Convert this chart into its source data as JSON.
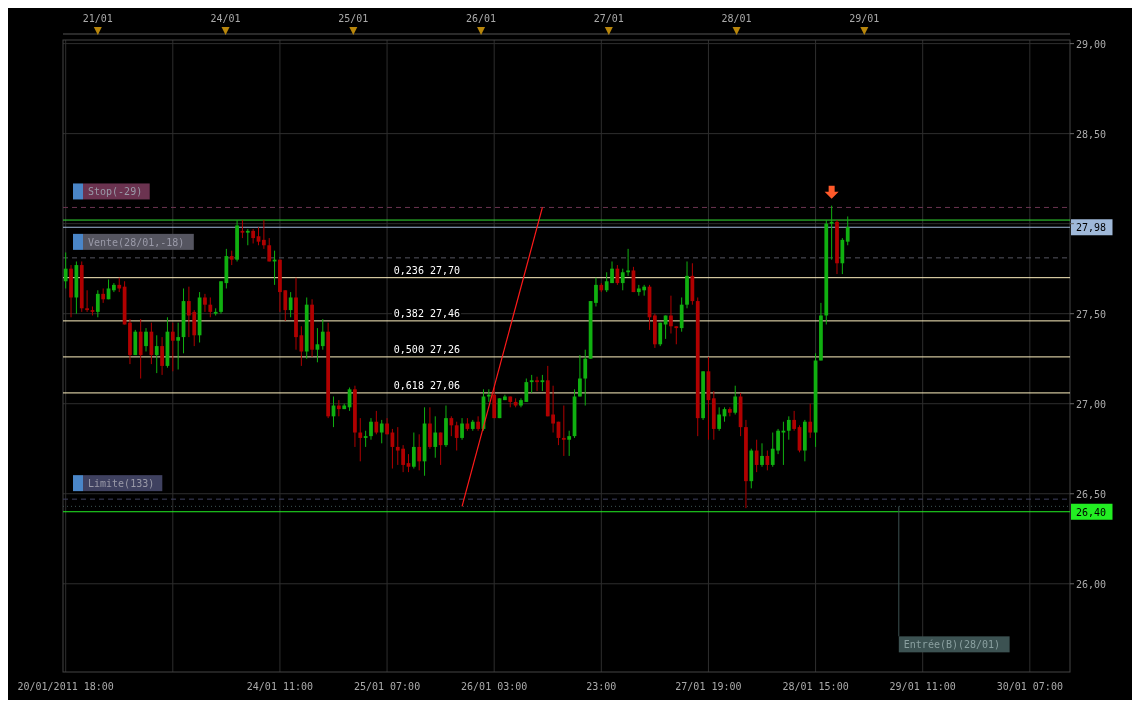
{
  "chart_data": {
    "type": "candlestick",
    "categories": [
      "20/01/2011 18:00",
      null,
      null,
      null,
      null,
      null,
      null,
      null,
      null,
      null,
      null,
      null,
      null,
      null,
      null,
      null,
      null,
      null,
      null,
      null,
      null,
      null,
      null,
      null,
      null,
      null,
      null,
      null,
      null,
      null,
      null,
      null,
      null,
      null,
      null,
      null,
      null,
      null,
      null,
      null,
      "24/01 11:00",
      null,
      null,
      null,
      null,
      null,
      null,
      null,
      null,
      null,
      null,
      null,
      null,
      null,
      null,
      null,
      null,
      null,
      null,
      null,
      "25/01 07:00",
      null,
      null,
      null,
      null,
      null,
      null,
      null,
      null,
      null,
      null,
      null,
      null,
      null,
      null,
      null,
      null,
      null,
      null,
      null,
      "26/01 03:00",
      null,
      null,
      null,
      null,
      null,
      null,
      null,
      null,
      null,
      null,
      null,
      null,
      null,
      null,
      null,
      null,
      null,
      null,
      null,
      "23:00",
      null,
      null,
      null,
      null,
      null,
      null,
      null,
      null,
      null,
      null,
      null,
      null,
      null,
      null,
      null,
      null,
      null,
      null,
      null,
      "27/01 19:00",
      null,
      null,
      null,
      null,
      null,
      null,
      null,
      null,
      null,
      null,
      null,
      null,
      null,
      null,
      null,
      null,
      null,
      null,
      null,
      "28/01 15:00",
      null,
      null,
      null,
      null,
      null,
      null,
      null,
      null,
      null,
      null,
      null,
      null,
      null,
      null,
      null,
      null,
      null,
      null,
      null,
      "29/01 11:00",
      null,
      null,
      null,
      null,
      null,
      null,
      null,
      null,
      null,
      null,
      null,
      null,
      null,
      null,
      null,
      null,
      null,
      null,
      null,
      "30/01 07:00",
      null,
      null,
      null,
      null,
      null,
      null,
      null
    ],
    "ohlc": [
      [
        27.68,
        27.84,
        27.64,
        27.75
      ],
      [
        27.75,
        27.77,
        27.48,
        27.59
      ],
      [
        27.59,
        27.79,
        27.5,
        27.77
      ],
      [
        27.77,
        27.79,
        27.51,
        27.53
      ],
      [
        27.53,
        27.63,
        27.51,
        27.52
      ],
      [
        27.52,
        27.54,
        27.49,
        27.51
      ],
      [
        27.51,
        27.63,
        27.48,
        27.61
      ],
      [
        27.61,
        27.64,
        27.56,
        27.58
      ],
      [
        27.58,
        27.69,
        27.58,
        27.64
      ],
      [
        27.63,
        27.67,
        27.62,
        27.66
      ],
      [
        27.66,
        27.7,
        27.62,
        27.64
      ],
      [
        27.65,
        27.68,
        27.44,
        27.44
      ],
      [
        27.45,
        27.47,
        27.22,
        27.27
      ],
      [
        27.27,
        27.41,
        27.27,
        27.4
      ],
      [
        27.4,
        27.47,
        27.14,
        27.27
      ],
      [
        27.32,
        27.42,
        27.29,
        27.4
      ],
      [
        27.4,
        27.45,
        27.22,
        27.27
      ],
      [
        27.27,
        27.38,
        27.17,
        27.32
      ],
      [
        27.32,
        27.37,
        27.16,
        27.21
      ],
      [
        27.21,
        27.48,
        27.2,
        27.4
      ],
      [
        27.4,
        27.45,
        27.18,
        27.35
      ],
      [
        27.35,
        27.45,
        27.19,
        27.37
      ],
      [
        27.37,
        27.64,
        27.28,
        27.57
      ],
      [
        27.57,
        27.65,
        27.37,
        27.49
      ],
      [
        27.51,
        27.52,
        27.32,
        27.38
      ],
      [
        27.38,
        27.62,
        27.34,
        27.59
      ],
      [
        27.59,
        27.61,
        27.51,
        27.55
      ],
      [
        27.55,
        27.59,
        27.48,
        27.51
      ],
      [
        27.5,
        27.53,
        27.49,
        27.51
      ],
      [
        27.51,
        27.68,
        27.5,
        27.68
      ],
      [
        27.67,
        27.86,
        27.64,
        27.82
      ],
      [
        27.82,
        27.85,
        27.77,
        27.8
      ],
      [
        27.8,
        28.02,
        27.79,
        27.99
      ],
      [
        27.96,
        28.02,
        27.92,
        27.95
      ],
      [
        27.95,
        27.97,
        27.88,
        27.96
      ],
      [
        27.96,
        27.97,
        27.89,
        27.92
      ],
      [
        27.93,
        27.98,
        27.88,
        27.9
      ],
      [
        27.91,
        28.02,
        27.86,
        27.88
      ],
      [
        27.88,
        27.92,
        27.79,
        27.79
      ],
      [
        27.79,
        27.85,
        27.66,
        27.8
      ],
      [
        27.8,
        27.8,
        27.51,
        27.62
      ],
      [
        27.63,
        27.63,
        27.46,
        27.52
      ],
      [
        27.52,
        27.62,
        27.48,
        27.59
      ],
      [
        27.59,
        27.7,
        27.3,
        27.37
      ],
      [
        27.38,
        27.43,
        27.21,
        27.29
      ],
      [
        27.29,
        27.59,
        27.25,
        27.55
      ],
      [
        27.55,
        27.58,
        27.26,
        27.3
      ],
      [
        27.3,
        27.42,
        27.23,
        27.33
      ],
      [
        27.32,
        27.47,
        27.3,
        27.4
      ],
      [
        27.4,
        27.45,
        26.92,
        26.93
      ],
      [
        26.93,
        27.04,
        26.87,
        26.99
      ],
      [
        26.99,
        27.02,
        26.93,
        26.97
      ],
      [
        26.97,
        27.0,
        26.97,
        26.99
      ],
      [
        26.98,
        27.09,
        26.96,
        27.08
      ],
      [
        27.08,
        27.1,
        26.76,
        26.84
      ],
      [
        26.84,
        26.92,
        26.68,
        26.81
      ],
      [
        26.81,
        26.85,
        26.76,
        26.82
      ],
      [
        26.82,
        26.92,
        26.8,
        26.9
      ],
      [
        26.9,
        26.96,
        26.83,
        26.84
      ],
      [
        26.84,
        26.91,
        26.78,
        26.89
      ],
      [
        26.89,
        26.92,
        26.83,
        26.83
      ],
      [
        26.84,
        26.86,
        26.64,
        26.76
      ],
      [
        26.76,
        26.87,
        26.66,
        26.74
      ],
      [
        26.75,
        26.77,
        26.62,
        26.66
      ],
      [
        26.67,
        26.72,
        26.62,
        26.65
      ],
      [
        26.65,
        26.84,
        26.64,
        26.76
      ],
      [
        26.76,
        26.83,
        26.63,
        26.68
      ],
      [
        26.68,
        26.98,
        26.6,
        26.89
      ],
      [
        26.89,
        26.98,
        26.75,
        26.76
      ],
      [
        26.76,
        26.93,
        26.7,
        26.84
      ],
      [
        26.84,
        26.84,
        26.66,
        26.77
      ],
      [
        26.77,
        26.99,
        26.76,
        26.92
      ],
      [
        26.92,
        26.93,
        26.82,
        26.88
      ],
      [
        26.88,
        26.9,
        26.74,
        26.81
      ],
      [
        26.81,
        26.92,
        26.8,
        26.89
      ],
      [
        26.89,
        26.92,
        26.85,
        26.86
      ],
      [
        26.86,
        26.91,
        26.85,
        26.9
      ],
      [
        26.9,
        26.93,
        26.85,
        26.86
      ],
      [
        26.86,
        27.08,
        26.85,
        27.04
      ],
      [
        27.04,
        27.08,
        27.01,
        27.05
      ],
      [
        27.05,
        27.09,
        26.92,
        26.92
      ],
      [
        26.92,
        27.03,
        26.92,
        27.03
      ],
      [
        27.02,
        27.05,
        27.02,
        27.04
      ],
      [
        27.04,
        27.04,
        26.98,
        27.01
      ],
      [
        27.01,
        27.03,
        26.98,
        26.99
      ],
      [
        26.99,
        27.03,
        26.98,
        27.02
      ],
      [
        27.01,
        27.14,
        27.01,
        27.12
      ],
      [
        27.12,
        27.16,
        27.06,
        27.13
      ],
      [
        27.13,
        27.15,
        27.07,
        27.12
      ],
      [
        27.12,
        27.16,
        27.07,
        27.13
      ],
      [
        27.13,
        27.21,
        26.93,
        26.93
      ],
      [
        26.94,
        27.1,
        26.84,
        26.89
      ],
      [
        26.9,
        26.9,
        26.77,
        26.81
      ],
      [
        26.81,
        26.99,
        26.71,
        26.8
      ],
      [
        26.8,
        26.85,
        26.71,
        26.82
      ],
      [
        26.82,
        27.08,
        26.81,
        27.04
      ],
      [
        27.04,
        27.27,
        27.04,
        27.14
      ],
      [
        27.14,
        27.3,
        26.99,
        27.25
      ],
      [
        27.25,
        27.57,
        27.25,
        27.57
      ],
      [
        27.56,
        27.7,
        27.54,
        27.66
      ],
      [
        27.66,
        27.67,
        27.62,
        27.63
      ],
      [
        27.63,
        27.73,
        27.62,
        27.68
      ],
      [
        27.67,
        27.79,
        27.67,
        27.75
      ],
      [
        27.75,
        27.77,
        27.66,
        27.67
      ],
      [
        27.67,
        27.75,
        27.63,
        27.73
      ],
      [
        27.73,
        27.86,
        27.71,
        27.74
      ],
      [
        27.74,
        27.76,
        27.62,
        27.62
      ],
      [
        27.62,
        27.66,
        27.6,
        27.64
      ],
      [
        27.63,
        27.66,
        27.6,
        27.65
      ],
      [
        27.65,
        27.66,
        27.41,
        27.48
      ],
      [
        27.49,
        27.5,
        27.31,
        27.33
      ],
      [
        27.33,
        27.45,
        27.32,
        27.45
      ],
      [
        27.44,
        27.49,
        27.36,
        27.49
      ],
      [
        27.49,
        27.6,
        27.39,
        27.43
      ],
      [
        27.43,
        27.43,
        27.33,
        27.42
      ],
      [
        27.42,
        27.59,
        27.4,
        27.55
      ],
      [
        27.55,
        27.79,
        27.53,
        27.71
      ],
      [
        27.71,
        27.78,
        27.55,
        27.57
      ],
      [
        27.57,
        27.59,
        26.82,
        26.92
      ],
      [
        26.92,
        27.18,
        26.91,
        27.18
      ],
      [
        27.18,
        27.26,
        26.8,
        27.02
      ],
      [
        27.03,
        27.07,
        26.8,
        26.86
      ],
      [
        26.86,
        26.98,
        26.85,
        26.94
      ],
      [
        26.93,
        26.98,
        26.9,
        26.97
      ],
      [
        26.97,
        26.98,
        26.93,
        26.95
      ],
      [
        26.95,
        27.1,
        26.94,
        27.04
      ],
      [
        27.04,
        27.06,
        26.82,
        26.87
      ],
      [
        26.87,
        26.91,
        26.42,
        26.57
      ],
      [
        26.57,
        26.75,
        26.53,
        26.74
      ],
      [
        26.74,
        26.8,
        26.62,
        26.66
      ],
      [
        26.66,
        26.78,
        26.65,
        26.71
      ],
      [
        26.71,
        26.74,
        26.63,
        26.66
      ],
      [
        26.66,
        26.84,
        26.65,
        26.75
      ],
      [
        26.74,
        26.86,
        26.72,
        26.85
      ],
      [
        26.84,
        26.9,
        26.66,
        26.85
      ],
      [
        26.85,
        26.93,
        26.8,
        26.91
      ],
      [
        26.91,
        26.96,
        26.85,
        26.86
      ],
      [
        26.87,
        26.88,
        26.73,
        26.74
      ],
      [
        26.74,
        26.91,
        26.68,
        26.9
      ],
      [
        26.9,
        27.0,
        26.81,
        26.84
      ],
      [
        26.84,
        27.28,
        26.76,
        27.24
      ],
      [
        27.24,
        27.56,
        27.24,
        27.49
      ],
      [
        27.49,
        28.02,
        27.44,
        28.0
      ],
      [
        28.0,
        28.1,
        27.8,
        28.01
      ],
      [
        28.01,
        28.02,
        27.72,
        27.78
      ],
      [
        27.78,
        27.92,
        27.72,
        27.91
      ],
      [
        27.9,
        28.04,
        27.88,
        27.98
      ],
      null,
      null,
      null,
      null,
      null,
      null,
      null,
      null,
      null,
      null,
      null,
      null,
      null,
      null,
      null,
      null,
      null,
      null,
      null,
      null,
      null,
      null,
      null,
      null,
      null,
      null,
      null,
      null,
      null,
      null,
      null,
      null,
      null,
      null,
      null,
      null,
      null,
      null,
      null,
      null,
      null
    ],
    "series": [
      {
        "type": "line",
        "color": "#ff1a1a",
        "values": [
          null,
          null,
          null,
          null,
          null,
          null,
          null,
          null,
          null,
          null,
          null,
          null,
          null,
          null,
          null,
          null,
          null,
          null,
          null,
          null,
          null,
          null,
          null,
          null,
          null,
          null,
          null,
          null,
          null,
          null,
          null,
          null,
          null,
          null,
          null,
          null,
          null,
          null,
          null,
          null,
          null,
          null,
          null,
          null,
          null,
          null,
          null,
          null,
          null,
          null,
          null,
          null,
          null,
          null,
          null,
          null,
          null,
          null,
          null,
          null,
          null,
          null,
          null,
          null,
          null,
          null,
          null,
          null,
          null,
          null,
          null,
          null,
          null,
          null,
          26.43,
          null,
          null,
          null,
          null,
          null,
          null,
          null,
          null,
          null,
          null,
          null,
          null,
          null,
          null,
          28.09,
          null,
          null,
          null,
          null,
          null,
          null,
          null,
          null,
          null,
          null,
          null,
          null,
          null,
          null,
          null,
          null,
          null,
          null,
          null,
          null,
          null,
          null,
          null,
          null,
          null,
          null,
          null,
          null,
          null,
          null,
          null,
          null,
          null,
          null,
          null,
          null,
          null,
          null,
          null,
          null,
          null,
          null,
          null,
          null,
          null,
          null,
          null,
          null,
          null,
          null,
          null,
          null,
          null,
          null,
          null,
          null,
          null,
          null,
          null,
          null,
          null,
          null,
          null,
          null,
          null,
          null,
          null,
          null,
          null,
          null,
          null,
          null,
          null,
          null,
          null,
          null,
          null,
          null,
          null,
          null,
          null,
          null,
          null,
          null,
          null,
          null,
          null,
          null,
          null,
          null,
          null,
          null,
          null,
          null,
          null,
          null,
          null,
          null
        ]
      }
    ],
    "ylim": [
      25.51,
      29.02
    ],
    "yticks": [
      {
        "value": 26,
        "label": "26,00"
      },
      {
        "value": 26.5,
        "label": "26,50"
      },
      {
        "value": 27,
        "label": "27,00"
      },
      {
        "value": 27.5,
        "label": "27,50"
      },
      {
        "value": 28,
        "label": null
      },
      {
        "value": 28.5,
        "label": "28,50"
      },
      {
        "value": 29,
        "label": "29,00"
      }
    ],
    "grid": true,
    "ref_lines": [
      {
        "axis": "y",
        "value": 28.09,
        "label": "Stop(-29)",
        "color": "#6b3350",
        "line_style": "dashed"
      },
      {
        "axis": "y",
        "value": 28.02,
        "color": "#33dd33",
        "line_style": "solid"
      },
      {
        "axis": "y",
        "value": 27.98,
        "label": "27,98",
        "color": "#9fb8d8",
        "line_style": "solid"
      },
      {
        "axis": "y",
        "value": 27.81,
        "label": "Vente(28/01,-18)",
        "color": "#555560",
        "line_style": "dashed"
      },
      {
        "axis": "y",
        "value": 27.7,
        "color": "#fff1c0",
        "line_style": "solid"
      },
      {
        "axis": "y",
        "value": 27.46,
        "color": "#fff1c0",
        "line_style": "solid"
      },
      {
        "axis": "y",
        "value": 27.26,
        "color": "#fff1c0",
        "line_style": "solid"
      },
      {
        "axis": "y",
        "value": 27.06,
        "color": "#fff1c0",
        "line_style": "solid"
      },
      {
        "axis": "y",
        "value": 26.47,
        "label": "Limite(133)",
        "color": "#3f4160",
        "line_style": "dashed"
      },
      {
        "axis": "y",
        "value": 26.43,
        "label": "Entrée(B)(28/01)",
        "color": "#3c5252",
        "line_style": "dotted"
      },
      {
        "axis": "y",
        "value": 26.4,
        "label": "26,40",
        "color": "#22ee22",
        "line_style": "solid"
      }
    ],
    "annotations": [
      "21/01",
      "24/01",
      "25/01",
      "26/01",
      "27/01",
      "28/01",
      "29/01",
      {
        "text": "0,236 27,70",
        "y": 27.7
      },
      {
        "text": "0,382 27,46",
        "y": 27.46
      },
      {
        "text": "0,500 27,26",
        "y": 27.26
      },
      {
        "text": "0,618 27,06",
        "y": 27.06
      }
    ]
  }
}
